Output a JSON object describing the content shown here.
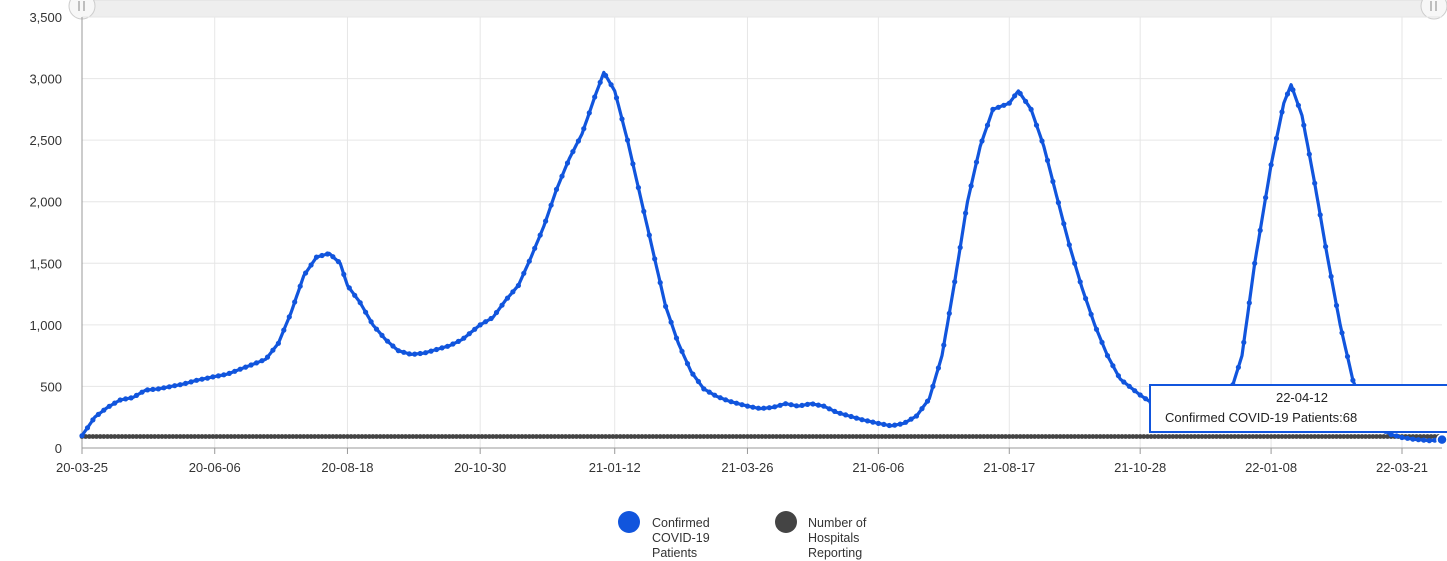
{
  "chart_data": {
    "type": "line",
    "x_type": "date",
    "x_start": "2020-03-25",
    "x_end": "2022-04-12",
    "xtick_labels": [
      "20-03-25",
      "20-06-06",
      "20-08-18",
      "20-10-30",
      "21-01-12",
      "21-03-26",
      "21-06-06",
      "21-08-17",
      "21-10-28",
      "22-01-08",
      "22-03-21"
    ],
    "ylim": [
      0,
      3500
    ],
    "ytick_values": [
      0,
      500,
      1000,
      1500,
      2000,
      2500,
      3000,
      3500
    ],
    "ytick_labels": [
      "0",
      "500",
      "1,000",
      "1,500",
      "2,000",
      "2,500",
      "3,000",
      "3,500"
    ],
    "grid": true,
    "legend_position": "bottom",
    "series": [
      {
        "name": "Confirmed COVID-19 Patients",
        "color": "#1155dd",
        "points": [
          [
            "2020-03-25",
            100
          ],
          [
            "2020-04-01",
            250
          ],
          [
            "2020-04-08",
            330
          ],
          [
            "2020-04-15",
            390
          ],
          [
            "2020-04-22",
            410
          ],
          [
            "2020-04-29",
            470
          ],
          [
            "2020-05-06",
            480
          ],
          [
            "2020-05-13",
            500
          ],
          [
            "2020-05-20",
            520
          ],
          [
            "2020-05-27",
            550
          ],
          [
            "2020-06-06",
            580
          ],
          [
            "2020-06-13",
            600
          ],
          [
            "2020-06-20",
            640
          ],
          [
            "2020-06-27",
            680
          ],
          [
            "2020-07-04",
            720
          ],
          [
            "2020-07-11",
            850
          ],
          [
            "2020-07-18",
            1100
          ],
          [
            "2020-07-25",
            1400
          ],
          [
            "2020-08-01",
            1550
          ],
          [
            "2020-08-08",
            1580
          ],
          [
            "2020-08-14",
            1500
          ],
          [
            "2020-08-18",
            1320
          ],
          [
            "2020-08-25",
            1180
          ],
          [
            "2020-09-01",
            1000
          ],
          [
            "2020-09-08",
            880
          ],
          [
            "2020-09-15",
            790
          ],
          [
            "2020-09-22",
            760
          ],
          [
            "2020-09-29",
            770
          ],
          [
            "2020-10-06",
            800
          ],
          [
            "2020-10-13",
            830
          ],
          [
            "2020-10-20",
            880
          ],
          [
            "2020-10-30",
            1000
          ],
          [
            "2020-11-06",
            1060
          ],
          [
            "2020-11-13",
            1200
          ],
          [
            "2020-11-20",
            1320
          ],
          [
            "2020-11-27",
            1550
          ],
          [
            "2020-12-04",
            1800
          ],
          [
            "2020-12-11",
            2100
          ],
          [
            "2020-12-18",
            2350
          ],
          [
            "2020-12-25",
            2550
          ],
          [
            "2021-01-01",
            2850
          ],
          [
            "2021-01-06",
            3050
          ],
          [
            "2021-01-12",
            2900
          ],
          [
            "2021-01-19",
            2500
          ],
          [
            "2021-01-26",
            2050
          ],
          [
            "2021-02-02",
            1600
          ],
          [
            "2021-02-09",
            1150
          ],
          [
            "2021-02-16",
            850
          ],
          [
            "2021-02-23",
            620
          ],
          [
            "2021-03-02",
            480
          ],
          [
            "2021-03-09",
            420
          ],
          [
            "2021-03-16",
            380
          ],
          [
            "2021-03-26",
            340
          ],
          [
            "2021-04-02",
            320
          ],
          [
            "2021-04-09",
            330
          ],
          [
            "2021-04-16",
            360
          ],
          [
            "2021-04-23",
            340
          ],
          [
            "2021-04-30",
            360
          ],
          [
            "2021-05-07",
            340
          ],
          [
            "2021-05-14",
            290
          ],
          [
            "2021-05-21",
            260
          ],
          [
            "2021-05-28",
            230
          ],
          [
            "2021-06-06",
            200
          ],
          [
            "2021-06-13",
            180
          ],
          [
            "2021-06-20",
            200
          ],
          [
            "2021-06-27",
            260
          ],
          [
            "2021-07-04",
            400
          ],
          [
            "2021-07-11",
            750
          ],
          [
            "2021-07-18",
            1350
          ],
          [
            "2021-07-25",
            2000
          ],
          [
            "2021-08-01",
            2450
          ],
          [
            "2021-08-08",
            2750
          ],
          [
            "2021-08-17",
            2800
          ],
          [
            "2021-08-22",
            2900
          ],
          [
            "2021-08-29",
            2750
          ],
          [
            "2021-09-05",
            2450
          ],
          [
            "2021-09-12",
            2050
          ],
          [
            "2021-09-19",
            1650
          ],
          [
            "2021-09-26",
            1300
          ],
          [
            "2021-10-03",
            1000
          ],
          [
            "2021-10-10",
            750
          ],
          [
            "2021-10-17",
            560
          ],
          [
            "2021-10-28",
            430
          ],
          [
            "2021-11-04",
            360
          ],
          [
            "2021-11-11",
            310
          ],
          [
            "2021-11-18",
            300
          ],
          [
            "2021-11-25",
            320
          ],
          [
            "2021-12-02",
            340
          ],
          [
            "2021-12-09",
            360
          ],
          [
            "2021-12-16",
            420
          ],
          [
            "2021-12-23",
            750
          ],
          [
            "2021-12-30",
            1500
          ],
          [
            "2022-01-08",
            2300
          ],
          [
            "2022-01-15",
            2800
          ],
          [
            "2022-01-19",
            2950
          ],
          [
            "2022-01-25",
            2700
          ],
          [
            "2022-02-01",
            2150
          ],
          [
            "2022-02-08",
            1550
          ],
          [
            "2022-02-15",
            1000
          ],
          [
            "2022-02-22",
            550
          ],
          [
            "2022-03-01",
            300
          ],
          [
            "2022-03-08",
            170
          ],
          [
            "2022-03-15",
            110
          ],
          [
            "2022-03-21",
            85
          ],
          [
            "2022-03-28",
            70
          ],
          [
            "2022-04-05",
            60
          ],
          [
            "2022-04-12",
            68
          ]
        ]
      },
      {
        "name": "Number of Hospitals Reporting",
        "color": "#444444",
        "points": [
          [
            "2020-03-25",
            93
          ],
          [
            "2022-04-12",
            93
          ]
        ]
      }
    ],
    "legend": [
      {
        "lines": [
          "Confirmed",
          "COVID-19",
          "Patients"
        ],
        "color": "#1155dd"
      },
      {
        "lines": [
          "Number of",
          "Hospitals",
          "Reporting"
        ],
        "color": "#444444"
      }
    ],
    "tooltip": {
      "title": "22-04-12",
      "text": "Confirmed COVID-19 Patients:68"
    }
  }
}
